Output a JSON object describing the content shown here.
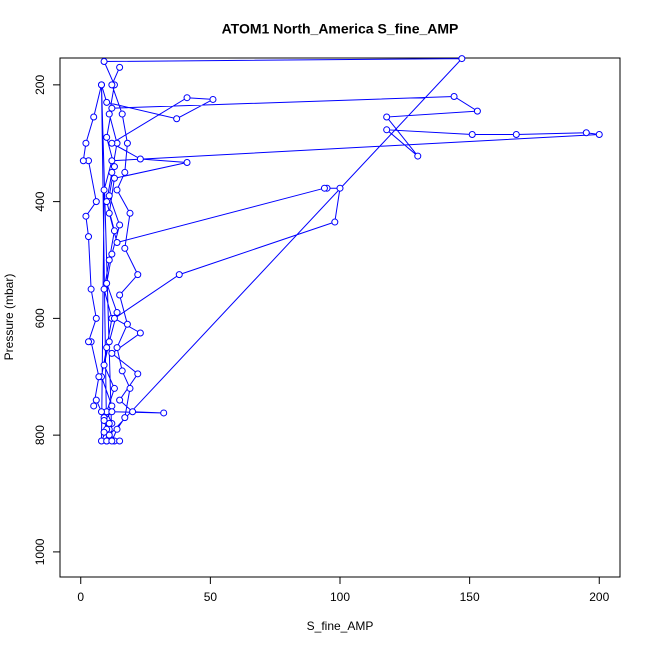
{
  "chart_data": {
    "type": "line",
    "title": "ATOM1 North_America S_fine_AMP",
    "x_label": "S_fine_AMP",
    "y_label": "Pressure (mbar)",
    "color": "#0000ff",
    "x": [
      10,
      11,
      9,
      12,
      8,
      10,
      12,
      9,
      11,
      13,
      10,
      12,
      14,
      11,
      13,
      9,
      147,
      11,
      12,
      10,
      13,
      9,
      11,
      14,
      10,
      12,
      15,
      11,
      13,
      10,
      12,
      144,
      153,
      118,
      130,
      118,
      151,
      168,
      195,
      200,
      12,
      9,
      8,
      10,
      9,
      12,
      32,
      20,
      15,
      22,
      12,
      23,
      13,
      38,
      98,
      100,
      95,
      94,
      14,
      11,
      13,
      41,
      23,
      12,
      41,
      51,
      37,
      10,
      8,
      10,
      13,
      15,
      9,
      11,
      8,
      6,
      5,
      7,
      4,
      3,
      6,
      4,
      3,
      2,
      6,
      3,
      1,
      2,
      5,
      8,
      12,
      14,
      17,
      19,
      16,
      14,
      18,
      15,
      22,
      17,
      19,
      14,
      17,
      18,
      16,
      12,
      15
    ],
    "values": [
      810,
      790,
      770,
      750,
      700,
      650,
      600,
      550,
      500,
      450,
      400,
      350,
      300,
      250,
      200,
      160,
      155,
      800,
      780,
      760,
      720,
      680,
      640,
      590,
      540,
      490,
      440,
      390,
      340,
      290,
      240,
      220,
      245,
      255,
      322,
      277,
      285,
      285,
      282,
      285,
      330,
      380,
      810,
      790,
      775,
      760,
      762,
      760,
      740,
      695,
      660,
      625,
      600,
      525,
      435,
      377,
      377,
      377,
      470,
      420,
      360,
      333,
      327,
      300,
      222,
      225,
      258,
      230,
      200,
      810,
      810,
      810,
      795,
      780,
      760,
      740,
      750,
      700,
      640,
      640,
      600,
      550,
      460,
      425,
      400,
      330,
      330,
      300,
      255,
      200,
      810,
      790,
      770,
      720,
      690,
      650,
      610,
      560,
      525,
      480,
      420,
      380,
      350,
      300,
      250,
      200,
      170
    ],
    "xlim": [
      -8,
      208
    ],
    "xticks": [
      0,
      50,
      100,
      150,
      200
    ],
    "ylim": [
      1043,
      154
    ],
    "yticks": [
      200,
      400,
      600,
      800,
      1000
    ]
  }
}
